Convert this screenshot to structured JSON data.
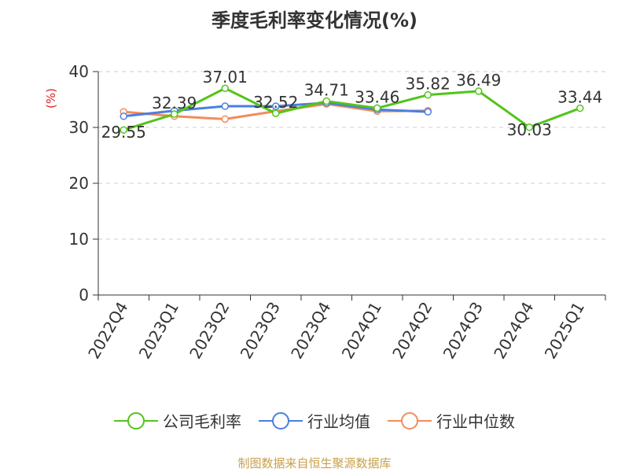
{
  "chart_data": {
    "type": "line",
    "title": "季度毛利率变化情况(%)",
    "ylabel": "(%)",
    "xlabel": "",
    "ylim": [
      0,
      40
    ],
    "yticks": [
      0,
      10,
      20,
      30,
      40
    ],
    "grid": true,
    "legend_position": "bottom",
    "categories": [
      "2022Q4",
      "2023Q1",
      "2023Q2",
      "2023Q3",
      "2023Q4",
      "2024Q1",
      "2024Q2",
      "2024Q3",
      "2024Q4",
      "2025Q1"
    ],
    "series": [
      {
        "name": "公司毛利率",
        "color": "#52c41a",
        "values": [
          29.55,
          32.39,
          37.01,
          32.52,
          34.71,
          33.46,
          35.82,
          36.49,
          30.03,
          33.44
        ],
        "labels": [
          "29.55",
          "32.39",
          "37.01",
          "32.52",
          "34.71",
          "33.46",
          "35.82",
          "36.49",
          "30.03",
          "33.44"
        ]
      },
      {
        "name": "行业均值",
        "color": "#4a7fe0",
        "values": [
          32.0,
          33.0,
          33.8,
          33.8,
          34.4,
          33.2,
          32.8,
          null,
          null,
          null
        ]
      },
      {
        "name": "行业中位数",
        "color": "#f28c5a",
        "values": [
          32.8,
          32.0,
          31.5,
          32.9,
          34.2,
          32.9,
          33.0,
          null,
          null,
          null
        ]
      }
    ]
  },
  "source_text": "制图数据来自恒生聚源数据库"
}
